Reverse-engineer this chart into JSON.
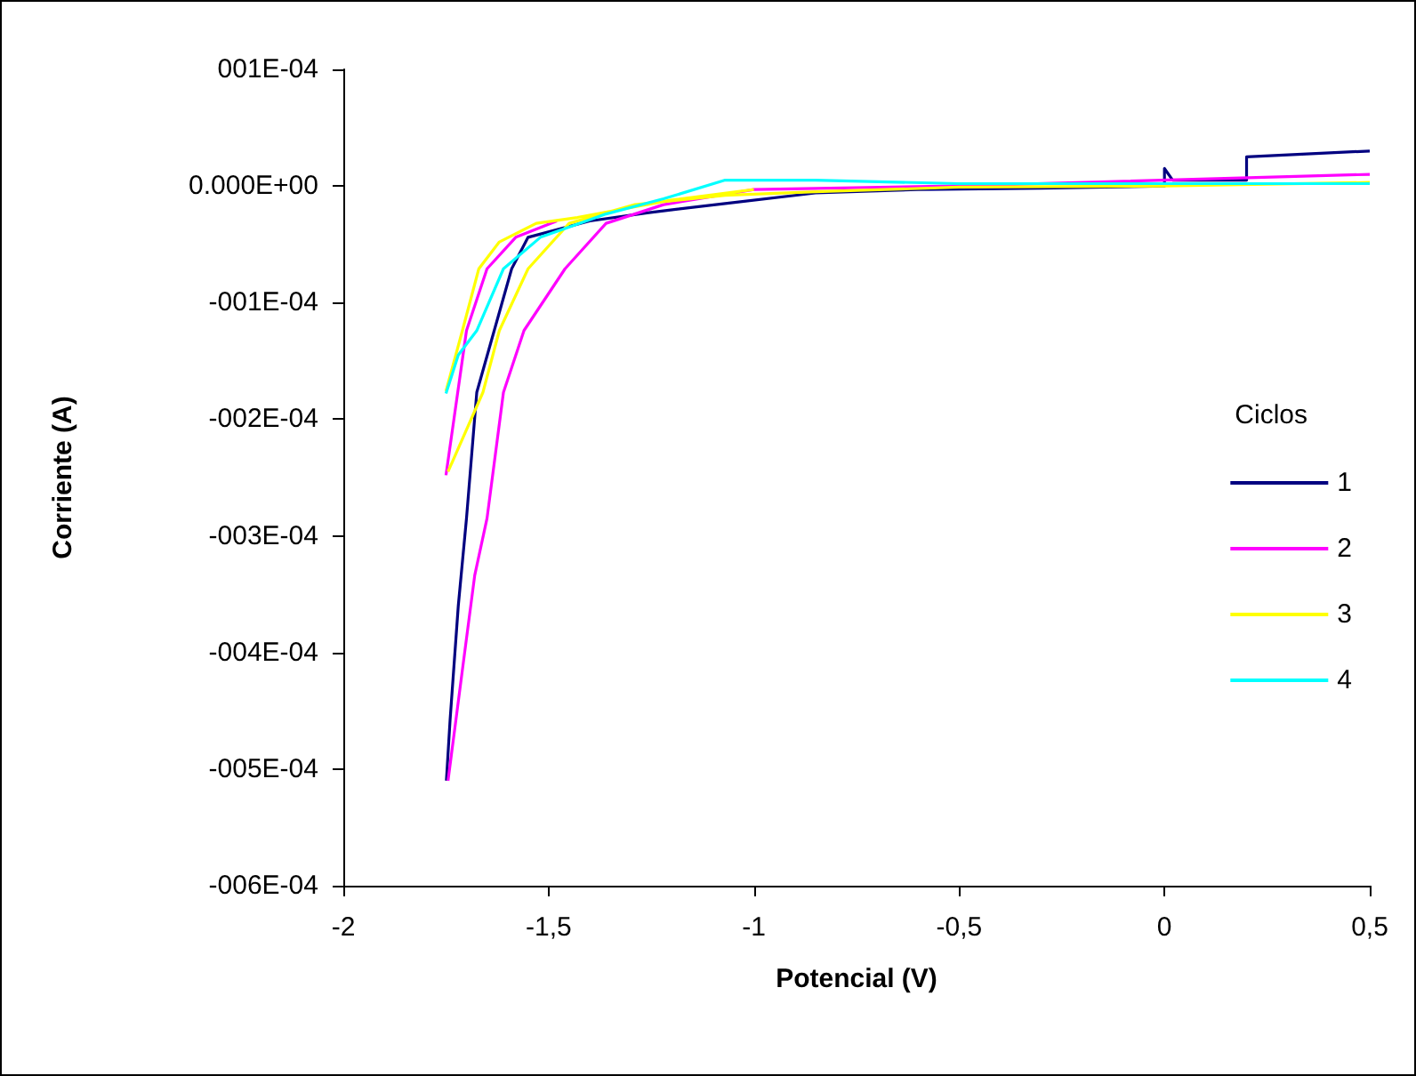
{
  "chart_data": {
    "type": "line",
    "xlabel": "Potencial (V)",
    "ylabel": "Corriente (A)",
    "legend_title": "Ciclos",
    "legend": "right",
    "grid": false,
    "marker": "none",
    "line_style": "solid",
    "xlim": [
      -2,
      0.5
    ],
    "xticks": [
      -2,
      {
        "value": -1.5,
        "label": "-1,5"
      },
      -1,
      {
        "value": -0.5,
        "label": "-0,5"
      },
      0,
      {
        "value": 0.5,
        "label": "0,5"
      }
    ],
    "ylim": [
      -0.0006,
      0.0001
    ],
    "yticks": [
      {
        "value": -0.0006,
        "label": "-006E-04"
      },
      {
        "value": -0.0005,
        "label": "-005E-04"
      },
      {
        "value": -0.0004,
        "label": "-004E-04"
      },
      {
        "value": -0.0003,
        "label": "-003E-04"
      },
      {
        "value": -0.0002,
        "label": "-002E-04"
      },
      {
        "value": -0.0001,
        "label": "-001E-04"
      },
      {
        "value": 0,
        "label": "0.000E+00"
      },
      {
        "value": 0.0001,
        "label": "001E-04"
      }
    ],
    "series": [
      {
        "name": "1",
        "color": "#000080",
        "x": [
          0.5,
          0.2,
          0.2,
          0.1,
          0.02,
          0.0,
          0.0,
          -0.3,
          -0.6,
          -0.85,
          -1.07,
          -1.26,
          -1.4,
          -1.55,
          -1.59,
          -1.675,
          -1.7,
          -1.72,
          -1.74,
          -1.749
        ],
        "values": [
          3e-05,
          2.5e-05,
          5e-06,
          5e-06,
          5e-06,
          1.5e-05,
          0.0,
          -2e-06,
          -3e-06,
          -6e-06,
          -1.5e-05,
          -2.3e-05,
          -3e-05,
          -4.4e-05,
          -7.1e-05,
          -0.000177,
          -0.000285,
          -0.00036,
          -0.000458,
          -0.00051
        ]
      },
      {
        "name": "2",
        "color": "#ff00ff",
        "x": [
          0.5,
          0.3,
          -0.5,
          -1.0,
          -1.22,
          -1.36,
          -1.46,
          -1.56,
          -1.61,
          -1.65,
          -1.68,
          -1.71,
          -1.745,
          null,
          -1.75,
          -1.7,
          -1.65,
          -1.58,
          -1.48
        ],
        "values": [
          1e-05,
          8e-06,
          0.0,
          -3e-06,
          -1.6e-05,
          -3.2e-05,
          -7.1e-05,
          -0.000124,
          -0.000177,
          -0.000285,
          -0.000334,
          -0.000415,
          -0.00051,
          null,
          -0.000248,
          -0.000124,
          -7.1e-05,
          -4.4e-05,
          -3e-05
        ]
      },
      {
        "name": "3",
        "color": "#ffff00",
        "x": [
          0.5,
          0.0,
          -0.5,
          -0.85,
          -1.07,
          -1.29,
          -1.45,
          -1.55,
          -1.62,
          -1.66,
          -1.745,
          null,
          -1.75,
          -1.71,
          -1.67,
          -1.62,
          -1.53,
          -1.43,
          -1.2,
          -1.0
        ],
        "values": [
          3e-06,
          0.0,
          -1e-06,
          -5e-06,
          -8e-06,
          -1.6e-05,
          -3.2e-05,
          -7.1e-05,
          -0.000124,
          -0.000177,
          -0.000245,
          null,
          -0.000176,
          -0.000124,
          -7.1e-05,
          -4.8e-05,
          -3.2e-05,
          -2.7e-05,
          -1.2e-05,
          -3e-06
        ]
      },
      {
        "name": "4",
        "color": "#00ffff",
        "x": [
          0.5,
          0.0,
          -0.5,
          -0.85,
          -1.07,
          -1.22,
          -1.36,
          -1.52,
          -1.61,
          -1.675,
          -1.72,
          -1.75
        ],
        "values": [
          2e-06,
          2e-06,
          2e-06,
          5e-06,
          5e-06,
          -1.1e-05,
          -2.4e-05,
          -4.4e-05,
          -7.1e-05,
          -0.000124,
          -0.000145,
          -0.000178
        ]
      }
    ]
  }
}
